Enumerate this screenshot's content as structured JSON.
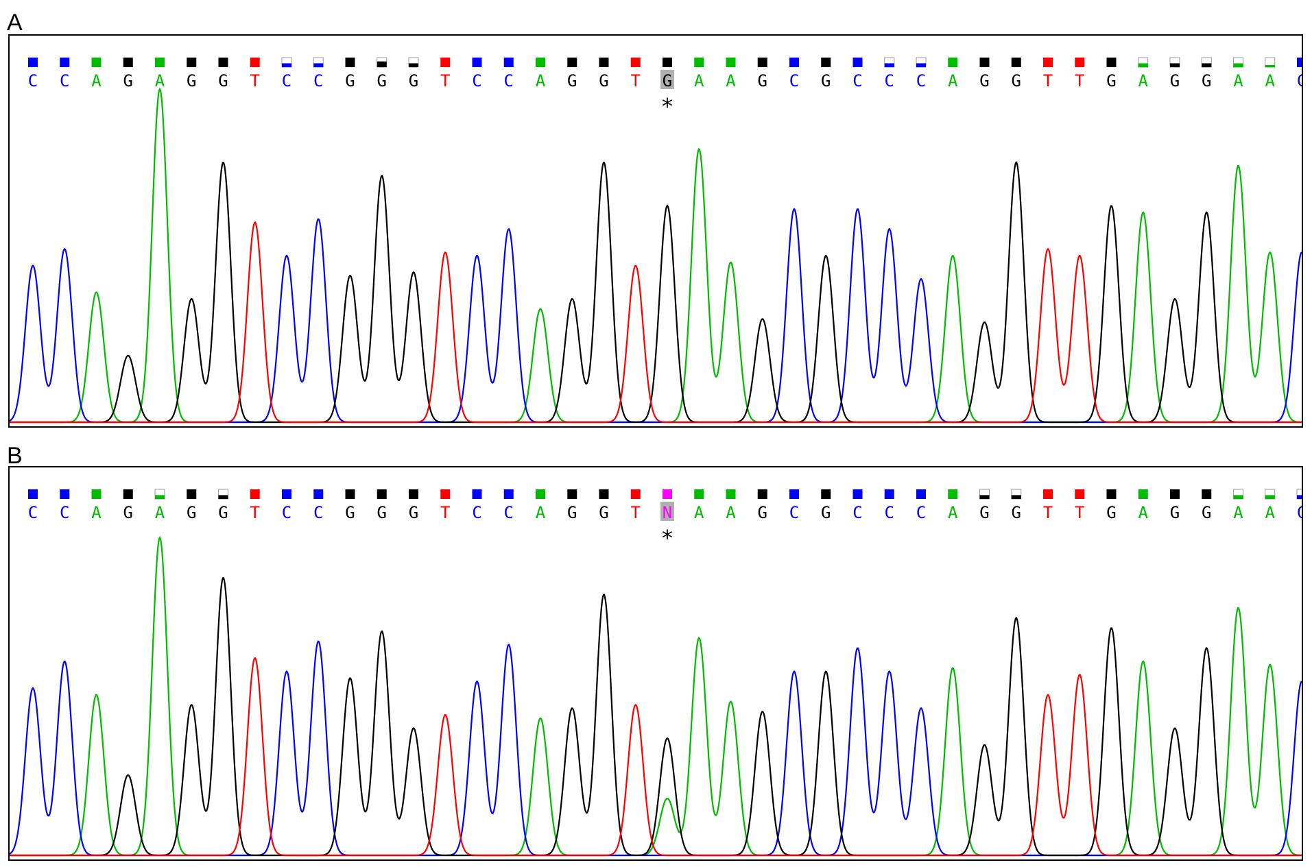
{
  "panels": [
    {
      "label": "A",
      "sequence": [
        "C",
        "C",
        "A",
        "G",
        "A",
        "G",
        "G",
        "T",
        "C",
        "C",
        "G",
        "G",
        "G",
        "T",
        "C",
        "C",
        "A",
        "G",
        "G",
        "T",
        "G",
        "A",
        "A",
        "G",
        "C",
        "G",
        "C",
        "C",
        "C",
        "A",
        "G",
        "G",
        "T",
        "T",
        "G",
        "A",
        "G",
        "G",
        "A",
        "A",
        "C"
      ],
      "quality": [
        1,
        1,
        1,
        1,
        1,
        1,
        1,
        1,
        0.4,
        0.4,
        1,
        0.6,
        0.4,
        1,
        1,
        1,
        1,
        1,
        1,
        1,
        1,
        1,
        1,
        1,
        1,
        1,
        1,
        0.4,
        0.4,
        1,
        1,
        1,
        1,
        1,
        1,
        0.4,
        0.4,
        0.4,
        0.4,
        0.15,
        1
      ],
      "highlight_index": 20,
      "marker": "*",
      "peak_heights": [
        0.47,
        0.52,
        0.39,
        0.2,
        1.0,
        0.37,
        0.78,
        0.6,
        0.5,
        0.61,
        0.44,
        0.74,
        0.45,
        0.51,
        0.5,
        0.58,
        0.34,
        0.37,
        0.78,
        0.47,
        0.65,
        0.82,
        0.48,
        0.31,
        0.64,
        0.5,
        0.64,
        0.58,
        0.43,
        0.5,
        0.3,
        0.78,
        0.52,
        0.5,
        0.65,
        0.63,
        0.37,
        0.63,
        0.77,
        0.51,
        0.51
      ]
    },
    {
      "label": "B",
      "sequence": [
        "C",
        "C",
        "A",
        "G",
        "A",
        "G",
        "G",
        "T",
        "C",
        "C",
        "G",
        "G",
        "G",
        "T",
        "C",
        "C",
        "A",
        "G",
        "G",
        "T",
        "N",
        "A",
        "A",
        "G",
        "C",
        "G",
        "C",
        "C",
        "C",
        "A",
        "G",
        "G",
        "T",
        "T",
        "G",
        "A",
        "G",
        "G",
        "A",
        "A",
        "C"
      ],
      "quality": [
        1,
        1,
        1,
        1,
        0.4,
        1,
        0.4,
        1,
        1,
        1,
        1,
        1,
        1,
        1,
        1,
        1,
        1,
        1,
        1,
        1,
        1,
        1,
        1,
        1,
        1,
        1,
        1,
        1,
        1,
        1,
        0.4,
        0.4,
        1,
        1,
        1,
        1,
        1,
        1,
        0.4,
        0.4,
        0.4
      ],
      "highlight_index": 20,
      "marker": "*",
      "peak_heights": [
        0.5,
        0.58,
        0.48,
        0.24,
        0.95,
        0.45,
        0.83,
        0.59,
        0.55,
        0.64,
        0.53,
        0.67,
        0.38,
        0.42,
        0.52,
        0.63,
        0.41,
        0.44,
        0.78,
        0.45,
        0.35,
        0.65,
        0.46,
        0.43,
        0.55,
        0.55,
        0.62,
        0.55,
        0.44,
        0.56,
        0.33,
        0.71,
        0.48,
        0.54,
        0.68,
        0.58,
        0.38,
        0.62,
        0.74,
        0.57,
        0.52
      ],
      "secondary_peak": {
        "index": 20,
        "base": "A",
        "height": 0.17
      }
    }
  ],
  "colors": {
    "A": "#00bb00",
    "C": "#0000ff",
    "G": "#000000",
    "T": "#ff0000",
    "N": "#ff00ff",
    "highlight_bg": "#b0b0b0"
  }
}
